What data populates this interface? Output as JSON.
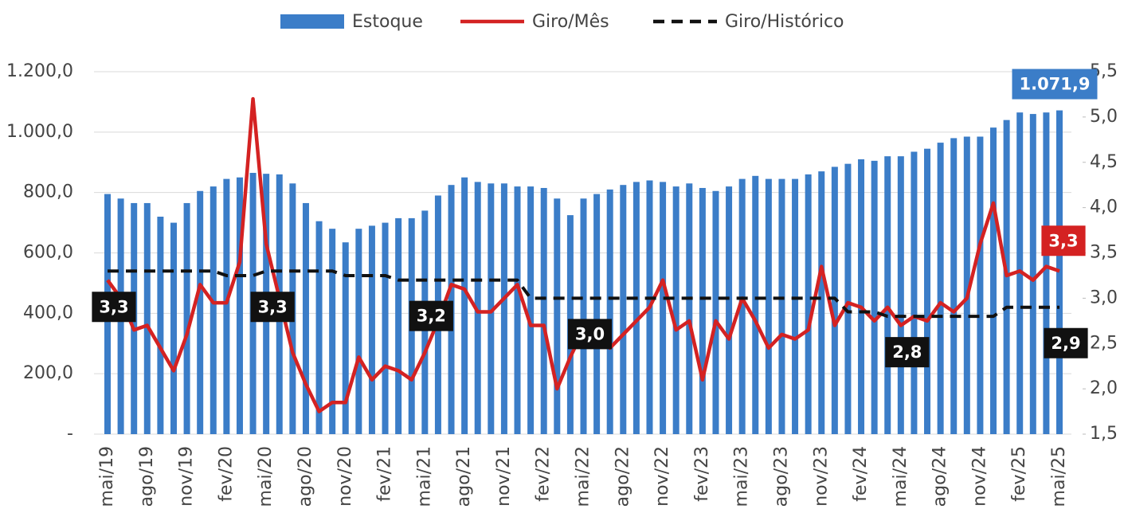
{
  "chart_data": {
    "type": "bar-line",
    "categories": [
      "mai/19",
      null,
      null,
      "ago/19",
      null,
      null,
      "nov/19",
      null,
      null,
      "fev/20",
      null,
      null,
      "mai/20",
      null,
      null,
      "ago/20",
      null,
      null,
      "nov/20",
      null,
      null,
      "fev/21",
      null,
      null,
      "mai/21",
      null,
      null,
      "ago/21",
      null,
      null,
      "nov/21",
      null,
      null,
      "fev/22",
      null,
      null,
      "mai/22",
      null,
      null,
      "ago/22",
      null,
      null,
      "nov/22",
      null,
      null,
      "fev/23",
      null,
      null,
      "mai/23",
      null,
      null,
      "ago/23",
      null,
      null,
      "nov/23",
      null,
      null,
      "fev/24",
      null,
      null,
      "mai/24",
      null,
      null,
      "ago/24",
      null,
      null,
      "nov/24",
      null,
      null,
      "fev/25",
      null,
      null,
      "mai/25"
    ],
    "series": [
      {
        "name": "Estoque",
        "color": "#3b7dc8",
        "kind": "bar",
        "values": [
          795,
          780,
          765,
          765,
          720,
          700,
          765,
          805,
          820,
          845,
          850,
          865,
          862,
          860,
          830,
          765,
          705,
          680,
          635,
          680,
          690,
          700,
          715,
          715,
          740,
          790,
          825,
          850,
          835,
          830,
          830,
          820,
          820,
          815,
          780,
          725,
          780,
          795,
          810,
          825,
          835,
          840,
          835,
          820,
          830,
          815,
          805,
          820,
          845,
          855,
          845,
          845,
          845,
          860,
          870,
          885,
          895,
          910,
          905,
          920,
          920,
          935,
          945,
          965,
          980,
          985,
          985,
          1015,
          1040,
          1065,
          1060,
          1065,
          1071.9
        ],
        "value_labels": [
          null,
          null,
          null,
          null,
          null,
          null,
          null,
          null,
          null,
          null,
          null,
          null,
          null,
          null,
          null,
          null,
          null,
          null,
          null,
          null,
          null,
          null,
          null,
          null,
          null,
          null,
          null,
          null,
          null,
          null,
          null,
          null,
          null,
          null,
          null,
          null,
          null,
          null,
          null,
          null,
          null,
          null,
          null,
          null,
          null,
          null,
          null,
          null,
          null,
          null,
          null,
          null,
          null,
          null,
          null,
          null,
          null,
          null,
          null,
          null,
          null,
          null,
          null,
          null,
          null,
          null,
          null,
          null,
          null,
          null,
          null,
          null,
          "1.071,9"
        ]
      },
      {
        "name": "Giro/Mês",
        "color": "#d42222",
        "kind": "line",
        "axis": "y2",
        "values": [
          3.2,
          3.0,
          2.65,
          2.7,
          2.45,
          2.2,
          2.6,
          3.15,
          2.95,
          2.95,
          3.4,
          5.2,
          3.6,
          3.0,
          2.4,
          2.05,
          1.75,
          1.85,
          1.85,
          2.35,
          2.1,
          2.25,
          2.2,
          2.1,
          2.4,
          2.75,
          3.15,
          3.1,
          2.85,
          2.85,
          3.0,
          3.15,
          2.7,
          2.7,
          2.0,
          2.35,
          2.65,
          2.6,
          2.45,
          2.6,
          2.75,
          2.9,
          3.2,
          2.65,
          2.75,
          2.1,
          2.75,
          2.55,
          3.0,
          2.75,
          2.45,
          2.6,
          2.55,
          2.65,
          3.35,
          2.7,
          2.95,
          2.9,
          2.75,
          2.9,
          2.7,
          2.8,
          2.75,
          2.95,
          2.85,
          3.0,
          3.6,
          4.05,
          3.25,
          3.3,
          3.2,
          3.35,
          3.3
        ],
        "value_labels": [
          null,
          null,
          null,
          null,
          null,
          null,
          null,
          null,
          null,
          null,
          null,
          null,
          null,
          null,
          null,
          null,
          null,
          null,
          null,
          null,
          null,
          null,
          null,
          null,
          null,
          null,
          null,
          null,
          null,
          null,
          null,
          null,
          null,
          null,
          null,
          null,
          null,
          null,
          null,
          null,
          null,
          null,
          null,
          null,
          null,
          null,
          null,
          null,
          null,
          null,
          null,
          null,
          null,
          null,
          null,
          null,
          null,
          null,
          null,
          null,
          null,
          null,
          null,
          null,
          null,
          null,
          null,
          null,
          null,
          null,
          null,
          null,
          "3,3"
        ]
      },
      {
        "name": "Giro/Histórico",
        "color": "#111111",
        "kind": "dashed",
        "axis": "y2",
        "values": [
          3.3,
          3.3,
          3.3,
          3.3,
          3.3,
          3.3,
          3.3,
          3.3,
          3.3,
          3.25,
          3.25,
          3.25,
          3.3,
          3.3,
          3.3,
          3.3,
          3.3,
          3.3,
          3.25,
          3.25,
          3.25,
          3.25,
          3.2,
          3.2,
          3.2,
          3.2,
          3.2,
          3.2,
          3.2,
          3.2,
          3.2,
          3.2,
          3.0,
          3.0,
          3.0,
          3.0,
          3.0,
          3.0,
          3.0,
          3.0,
          3.0,
          3.0,
          3.0,
          3.0,
          3.0,
          3.0,
          3.0,
          3.0,
          3.0,
          3.0,
          3.0,
          3.0,
          3.0,
          3.0,
          3.0,
          3.0,
          2.85,
          2.85,
          2.85,
          2.8,
          2.8,
          2.8,
          2.8,
          2.8,
          2.8,
          2.8,
          2.8,
          2.8,
          2.9,
          2.9,
          2.9,
          2.9,
          2.9
        ],
        "value_labels": [
          "3,3",
          null,
          null,
          null,
          null,
          null,
          null,
          null,
          null,
          null,
          null,
          null,
          "3,3",
          null,
          null,
          null,
          null,
          null,
          null,
          null,
          null,
          null,
          null,
          null,
          "3,2",
          null,
          null,
          null,
          null,
          null,
          null,
          null,
          null,
          null,
          null,
          null,
          "3,0",
          null,
          null,
          null,
          null,
          null,
          null,
          null,
          null,
          null,
          null,
          null,
          null,
          null,
          null,
          null,
          null,
          null,
          null,
          null,
          null,
          null,
          null,
          null,
          "2,8",
          null,
          null,
          null,
          null,
          null,
          null,
          null,
          null,
          null,
          null,
          null,
          "2,9"
        ]
      }
    ],
    "ylim": [
      0,
      1200
    ],
    "yticks": [
      {
        "value": 0,
        "label": "-"
      },
      {
        "value": 200,
        "label": "200,0"
      },
      {
        "value": 400,
        "label": "400,0"
      },
      {
        "value": 600,
        "label": "600,0"
      },
      {
        "value": 800,
        "label": "800,0"
      },
      {
        "value": 1000,
        "label": "1.000,0"
      },
      {
        "value": 1200,
        "label": "1.200,0"
      }
    ],
    "y2lim": [
      1.5,
      5.5
    ],
    "y2ticks": [
      {
        "value": 1.5,
        "label": "1,5"
      },
      {
        "value": 2.0,
        "label": "2,0"
      },
      {
        "value": 2.5,
        "label": "2,5"
      },
      {
        "value": 3.0,
        "label": "3,0"
      },
      {
        "value": 3.5,
        "label": "3,5"
      },
      {
        "value": 4.0,
        "label": "4,0"
      },
      {
        "value": 4.5,
        "label": "4,5"
      },
      {
        "value": 5.0,
        "label": "5,0"
      },
      {
        "value": 5.5,
        "label": "5,5"
      }
    ],
    "grid": true,
    "legend": "top"
  }
}
